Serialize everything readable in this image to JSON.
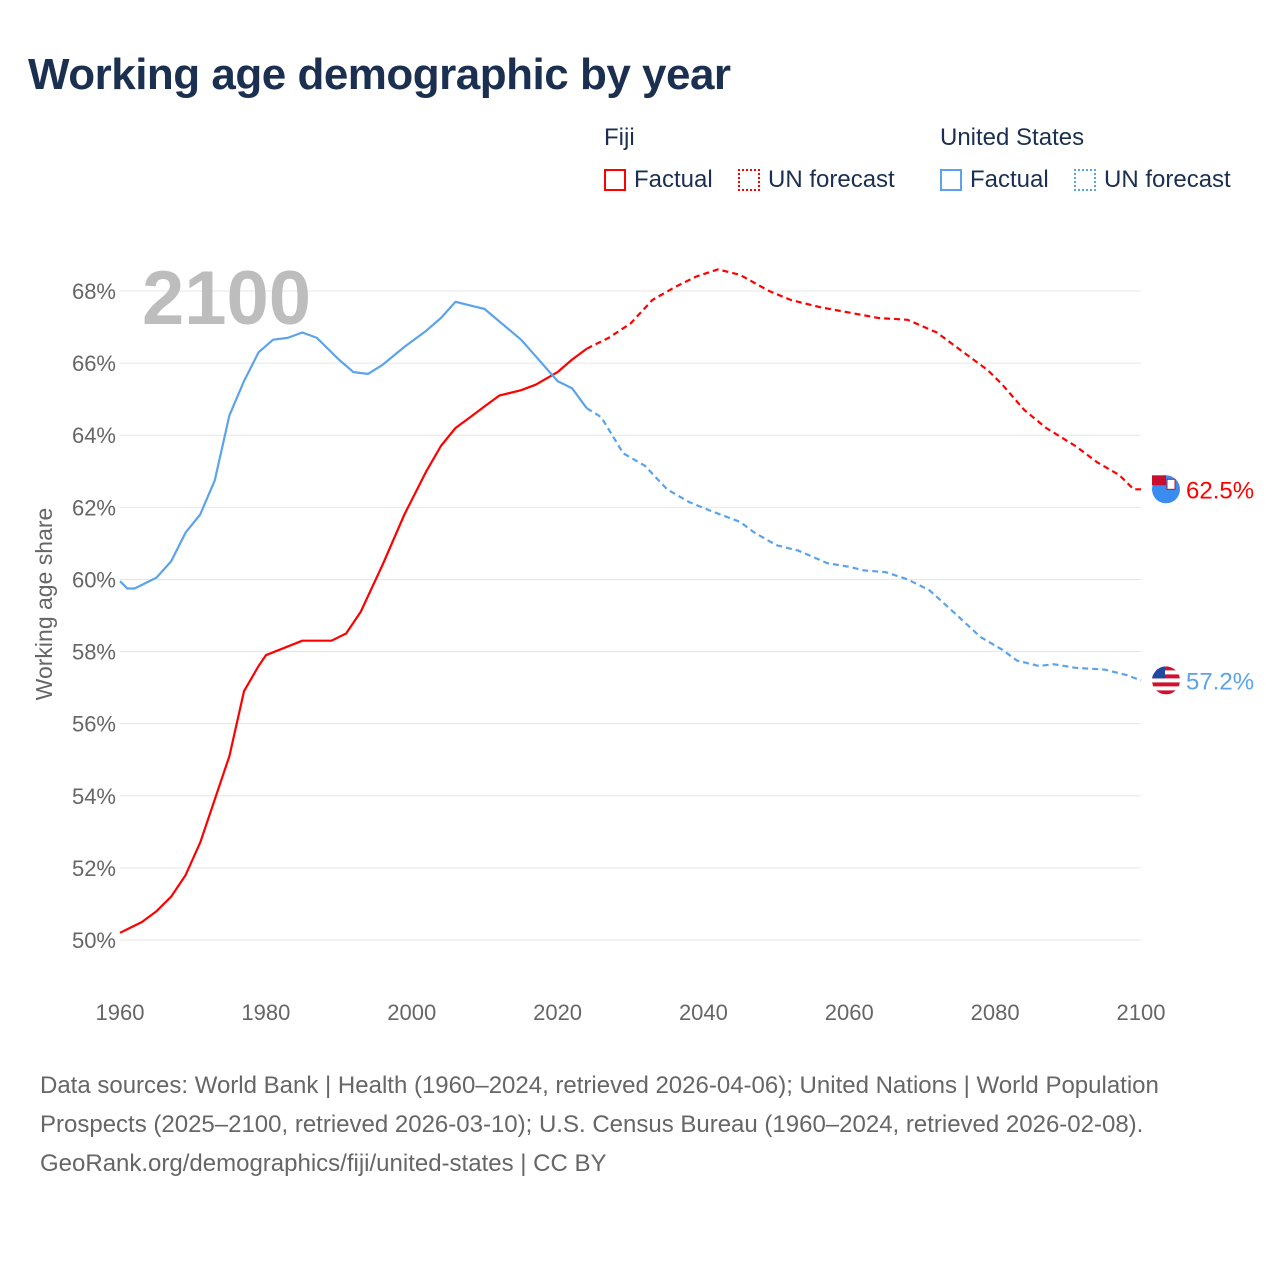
{
  "title": "Working age demographic by year",
  "legend": {
    "groups": [
      {
        "name": "Fiji",
        "factual": "Factual",
        "forecast": "UN forecast",
        "color": "#ff0000"
      },
      {
        "name": "United States",
        "factual": "Factual",
        "forecast": "UN forecast",
        "color": "#5ba3ea"
      }
    ]
  },
  "watermark_year": "2100",
  "footer": {
    "sources": "Data sources: World Bank | Health (1960–2024, retrieved 2026-04-06); United Nations | World Population Prospects (2025–2100, retrieved 2026-03-10); U.S. Census Bureau (1960–2024, retrieved 2026-02-08).",
    "link": "GeoRank.org/demographics/fiji/united-states | CC BY"
  },
  "chart_data": {
    "type": "line",
    "title": "Working age demographic by year",
    "xlabel": "",
    "ylabel": "Working age share",
    "xlim": [
      1960,
      2100
    ],
    "ylim": [
      50,
      68
    ],
    "x_ticks": [
      "1960",
      "1980",
      "2000",
      "2020",
      "2040",
      "2060",
      "2080",
      "2100"
    ],
    "y_ticks": [
      "50%",
      "52%",
      "54%",
      "56%",
      "58%",
      "60%",
      "62%",
      "64%",
      "66%",
      "68%"
    ],
    "grid": true,
    "legend_position": "top-right",
    "series": [
      {
        "name": "Fiji",
        "color": "#ff0000",
        "end_label": "62.5%",
        "factual": [
          [
            1960,
            50.2
          ],
          [
            1963,
            50.5
          ],
          [
            1965,
            50.8
          ],
          [
            1967,
            51.2
          ],
          [
            1969,
            51.8
          ],
          [
            1971,
            52.7
          ],
          [
            1973,
            53.9
          ],
          [
            1975,
            55.1
          ],
          [
            1977,
            56.9
          ],
          [
            1979,
            57.6
          ],
          [
            1980,
            57.9
          ],
          [
            1985,
            58.3
          ],
          [
            1989,
            58.3
          ],
          [
            1991,
            58.5
          ],
          [
            1993,
            59.1
          ],
          [
            1996,
            60.4
          ],
          [
            1999,
            61.8
          ],
          [
            2002,
            63.0
          ],
          [
            2004,
            63.7
          ],
          [
            2006,
            64.2
          ],
          [
            2008,
            64.5
          ],
          [
            2010,
            64.8
          ],
          [
            2012,
            65.1
          ],
          [
            2015,
            65.25
          ],
          [
            2017,
            65.4
          ],
          [
            2020,
            65.75
          ],
          [
            2022,
            66.1
          ],
          [
            2024,
            66.4
          ]
        ],
        "forecast": [
          [
            2024,
            66.4
          ],
          [
            2027,
            66.7
          ],
          [
            2030,
            67.1
          ],
          [
            2033,
            67.75
          ],
          [
            2036,
            68.1
          ],
          [
            2039,
            68.4
          ],
          [
            2042,
            68.6
          ],
          [
            2045,
            68.45
          ],
          [
            2049,
            68.0
          ],
          [
            2052,
            67.75
          ],
          [
            2056,
            67.55
          ],
          [
            2060,
            67.4
          ],
          [
            2064,
            67.25
          ],
          [
            2068,
            67.2
          ],
          [
            2072,
            66.85
          ],
          [
            2075,
            66.4
          ],
          [
            2079,
            65.8
          ],
          [
            2081,
            65.4
          ],
          [
            2084,
            64.7
          ],
          [
            2087,
            64.2
          ],
          [
            2091,
            63.7
          ],
          [
            2094,
            63.25
          ],
          [
            2097,
            62.9
          ],
          [
            2099,
            62.5
          ],
          [
            2100,
            62.5
          ]
        ]
      },
      {
        "name": "United States",
        "color": "#5ba3ea",
        "end_label": "57.2%",
        "factual": [
          [
            1960,
            59.95
          ],
          [
            1961,
            59.75
          ],
          [
            1962,
            59.75
          ],
          [
            1965,
            60.05
          ],
          [
            1967,
            60.5
          ],
          [
            1969,
            61.3
          ],
          [
            1971,
            61.8
          ],
          [
            1973,
            62.75
          ],
          [
            1975,
            64.55
          ],
          [
            1977,
            65.5
          ],
          [
            1979,
            66.3
          ],
          [
            1981,
            66.65
          ],
          [
            1983,
            66.7
          ],
          [
            1985,
            66.85
          ],
          [
            1987,
            66.7
          ],
          [
            1990,
            66.1
          ],
          [
            1992,
            65.75
          ],
          [
            1994,
            65.7
          ],
          [
            1996,
            65.95
          ],
          [
            1999,
            66.45
          ],
          [
            2002,
            66.9
          ],
          [
            2004,
            67.25
          ],
          [
            2006,
            67.7
          ],
          [
            2008,
            67.6
          ],
          [
            2010,
            67.5
          ],
          [
            2015,
            66.65
          ],
          [
            2020,
            65.5
          ],
          [
            2022,
            65.3
          ],
          [
            2024,
            64.75
          ]
        ],
        "forecast": [
          [
            2024,
            64.75
          ],
          [
            2026,
            64.5
          ],
          [
            2029,
            63.5
          ],
          [
            2032,
            63.15
          ],
          [
            2035,
            62.5
          ],
          [
            2038,
            62.15
          ],
          [
            2041,
            61.9
          ],
          [
            2045,
            61.6
          ],
          [
            2047,
            61.3
          ],
          [
            2050,
            60.95
          ],
          [
            2053,
            60.8
          ],
          [
            2057,
            60.45
          ],
          [
            2060,
            60.35
          ],
          [
            2062,
            60.25
          ],
          [
            2065,
            60.2
          ],
          [
            2068,
            60.0
          ],
          [
            2071,
            59.7
          ],
          [
            2074,
            59.15
          ],
          [
            2078,
            58.4
          ],
          [
            2081,
            58.05
          ],
          [
            2083,
            57.75
          ],
          [
            2086,
            57.6
          ],
          [
            2088,
            57.65
          ],
          [
            2091,
            57.55
          ],
          [
            2095,
            57.5
          ],
          [
            2098,
            57.35
          ],
          [
            2100,
            57.2
          ]
        ]
      }
    ]
  }
}
